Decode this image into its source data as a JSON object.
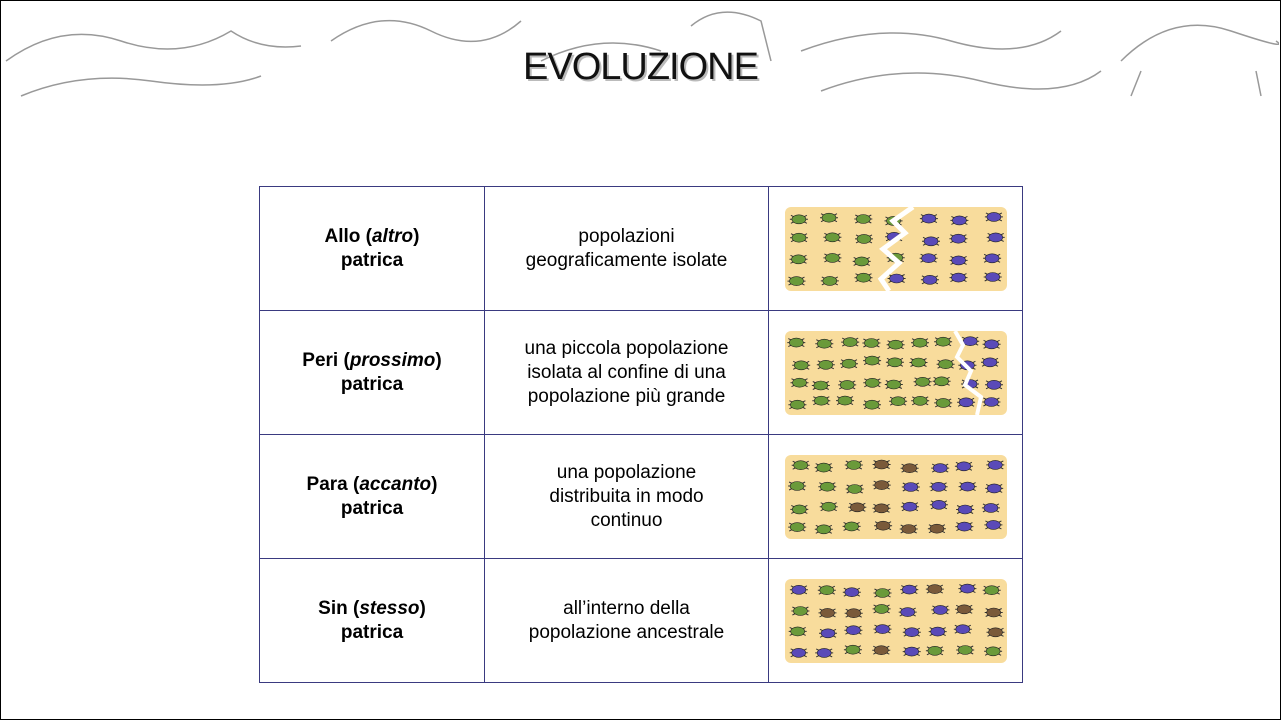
{
  "header": {
    "title": "EVOLUZIONE"
  },
  "table": {
    "rows": [
      {
        "label": [
          "Allo (",
          "altro",
          ")"
        ],
        "suffix": "patrica",
        "description": [
          "popolazioni",
          "geograficamente isolate"
        ]
      },
      {
        "label": [
          "Peri (",
          "prossimo",
          ")"
        ],
        "suffix": "patrica",
        "description": [
          "una piccola popolazione",
          "isolata al confine di una",
          "popolazione più grande"
        ]
      },
      {
        "label": [
          "Para (",
          "accanto",
          ")"
        ],
        "suffix": "patrica",
        "description": [
          "una popolazione",
          "distribuita in modo",
          "continuo"
        ]
      },
      {
        "label": [
          "Sin (",
          "stesso",
          ")"
        ],
        "suffix": "patrica",
        "description": [
          "all’interno della",
          "popolazione ancestrale"
        ]
      }
    ]
  }
}
